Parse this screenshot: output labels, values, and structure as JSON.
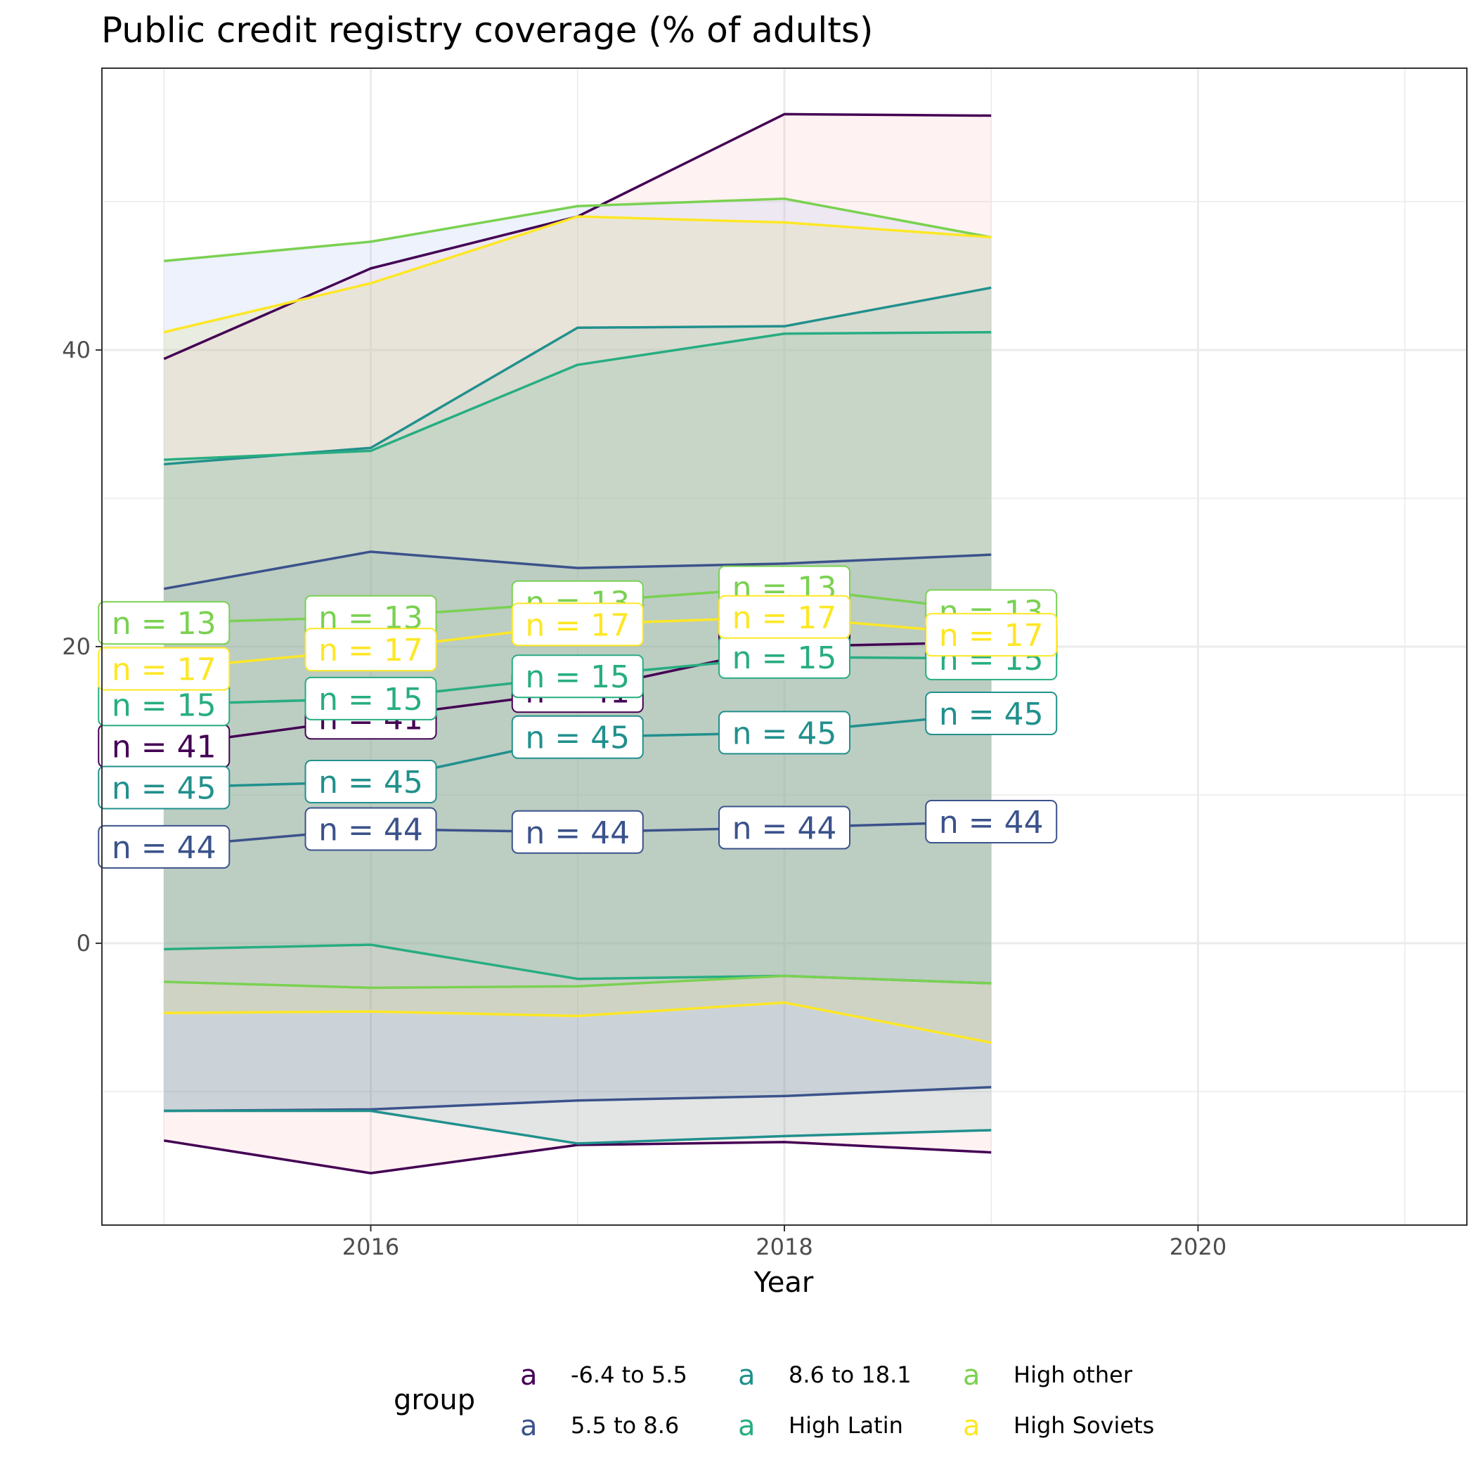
{
  "chart_data": {
    "type": "line",
    "title": "Public credit registry coverage (% of adults)",
    "xlabel": "Year",
    "ylabel": "",
    "xlim": [
      2014.7,
      2021.3
    ],
    "ylim": [
      -19,
      59
    ],
    "x_ticks": [
      2016,
      2018,
      2020
    ],
    "y_ticks": [
      0,
      20,
      40
    ],
    "grid": true,
    "legend": {
      "title": "group",
      "position": "bottom",
      "key_glyph": "a"
    },
    "x": [
      2015,
      2016,
      2017,
      2018,
      2019
    ],
    "series": [
      {
        "name": "-6.4 to 5.5",
        "color": "#440154",
        "fill": "#ff9999",
        "fill_opacity": 0.13,
        "mean": [
          13.3,
          15.2,
          17.0,
          20.0,
          20.3
        ],
        "upper": [
          39.4,
          45.5,
          49.0,
          55.9,
          55.8
        ],
        "lower": [
          -13.3,
          -15.5,
          -13.6,
          -13.4,
          -14.1
        ],
        "n_label": "n = 41"
      },
      {
        "name": "5.5 to 8.6",
        "color": "#3b528b",
        "fill": "#3b528b",
        "fill_opacity": 0.13,
        "mean": [
          6.5,
          7.7,
          7.5,
          7.8,
          8.2
        ],
        "upper": [
          23.9,
          26.4,
          25.3,
          25.6,
          26.2
        ],
        "lower": [
          -11.3,
          -11.2,
          -10.6,
          -10.3,
          -9.7
        ],
        "n_label": "n = 44"
      },
      {
        "name": "8.6 to 18.1",
        "color": "#21908d",
        "fill": "#21908d",
        "fill_opacity": 0.13,
        "mean": [
          10.5,
          10.9,
          13.9,
          14.2,
          15.5
        ],
        "upper": [
          32.3,
          33.4,
          41.5,
          41.6,
          44.2
        ],
        "lower": [
          -11.3,
          -11.3,
          -13.5,
          -13.0,
          -12.6
        ],
        "n_label": "n = 45"
      },
      {
        "name": "High Latin",
        "color": "#27ad81",
        "fill": "#27ad81",
        "fill_opacity": 0.13,
        "mean": [
          16.1,
          16.5,
          18.0,
          19.3,
          19.2
        ],
        "upper": [
          32.6,
          33.2,
          39.0,
          41.1,
          41.2
        ],
        "lower": [
          -0.4,
          -0.1,
          -2.4,
          -2.2,
          -2.7
        ],
        "n_label": "n = 15"
      },
      {
        "name": "High other",
        "color": "#7ad151",
        "fill": "#aec6f2",
        "fill_opacity": 0.22,
        "mean": [
          21.6,
          22.0,
          23.0,
          24.0,
          22.4
        ],
        "upper": [
          46.0,
          47.3,
          49.7,
          50.2,
          47.6
        ],
        "lower": [
          -2.6,
          -3.0,
          -2.9,
          -2.2,
          -2.7
        ],
        "n_label": "n = 13"
      },
      {
        "name": "High Soviets",
        "color": "#fde725",
        "fill": "#dcd77e",
        "fill_opacity": 0.22,
        "mean": [
          18.5,
          19.8,
          21.5,
          22.0,
          20.8
        ],
        "upper": [
          41.2,
          44.5,
          49.0,
          48.6,
          47.6
        ],
        "lower": [
          -4.7,
          -4.6,
          -4.9,
          -4.0,
          -6.7
        ],
        "n_label": "n = 17"
      }
    ],
    "label_positions_note": "n labels are drawn at each year along each series mean"
  }
}
